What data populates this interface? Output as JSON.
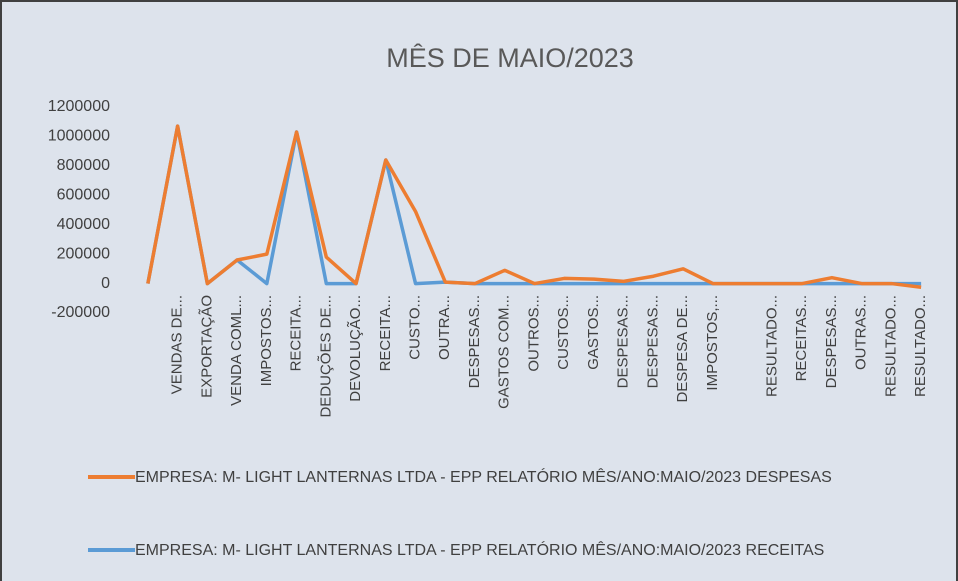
{
  "chart_data": {
    "type": "line",
    "title": "MÊS DE MAIO/2023",
    "categories": [
      null,
      "VENDAS DE...",
      "EXPORTAÇÃO",
      "VENDA COML...",
      "IMPOSTOS...",
      "RECEITA...",
      "DEDUÇÕES DE...",
      "DEVOLUÇÃO...",
      "RECEITA...",
      "CUSTO...",
      "OUTRA...",
      "DESPESAS...",
      "GASTOS COM...",
      "OUTROS...",
      "CUSTOS...",
      "GASTOS...",
      "DESPESAS...",
      "DESPESAS...",
      "DESPESA DE...",
      "IMPOSTOS,...",
      null,
      "RESULTADO...",
      "RECEITAS...",
      "DESPESAS...",
      "OUTRAS...",
      "RESULTADO...",
      "RESULTADO..."
    ],
    "series": [
      {
        "name": "EMPRESA: M- LIGHT LANTERNAS LTDA - EPP RELATÓRIO MÊS/ANO:MAIO/2023 DESPESAS",
        "color": "#ed7d31",
        "values": [
          0,
          1070000,
          0,
          160000,
          200000,
          1030000,
          180000,
          0,
          840000,
          490000,
          10000,
          0,
          90000,
          0,
          35000,
          30000,
          15000,
          50000,
          100000,
          0,
          0,
          0,
          0,
          40000,
          0,
          0,
          -25000
        ]
      },
      {
        "name": "EMPRESA: M- LIGHT LANTERNAS LTDA - EPP RELATÓRIO MÊS/ANO:MAIO/2023 RECEITAS",
        "color": "#5b9bd5",
        "values": [
          0,
          1070000,
          0,
          160000,
          0,
          1030000,
          0,
          0,
          840000,
          0,
          10000,
          0,
          0,
          0,
          0,
          0,
          0,
          0,
          0,
          0,
          0,
          0,
          0,
          0,
          0,
          0,
          0
        ]
      }
    ],
    "ylim": [
      -200000,
      1200000
    ],
    "yticks": [
      -200000,
      0,
      200000,
      400000,
      600000,
      800000,
      1000000,
      1200000
    ],
    "grid": false
  }
}
